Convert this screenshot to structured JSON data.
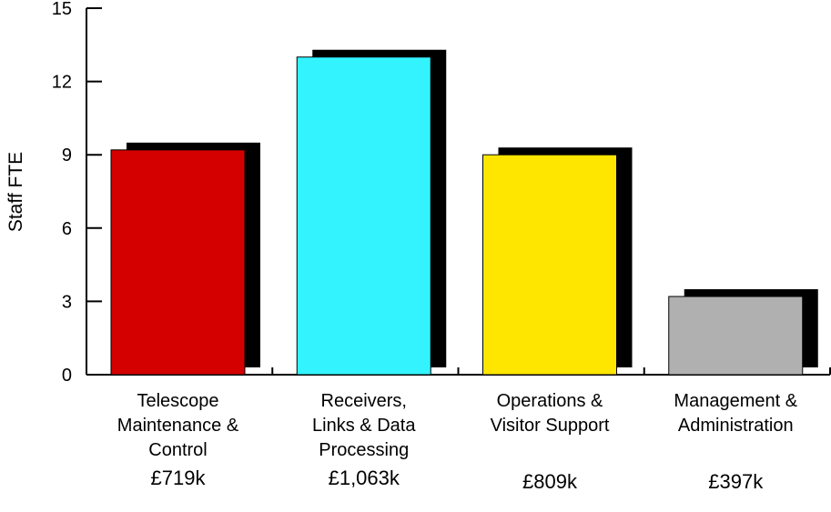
{
  "chart_data": {
    "type": "bar",
    "ylabel": "Staff FTE",
    "ylim": [
      0,
      15
    ],
    "yticks": [
      0,
      3,
      6,
      9,
      12,
      15
    ],
    "grid": false,
    "shadow": true,
    "categories": [
      "Telescope Maintenance & Control",
      "Receivers, Links & Data Processing",
      "Operations & Visitor Support",
      "Management & Administration"
    ],
    "category_label_lines": [
      [
        "Telescope",
        "Maintenance &",
        "Control"
      ],
      [
        "Receivers,",
        "Links & Data",
        "Processing"
      ],
      [
        "Operations &",
        "Visitor Support"
      ],
      [
        "Management &",
        "Administration"
      ]
    ],
    "values": [
      9.2,
      13.0,
      9.0,
      3.2
    ],
    "costs": [
      "£719k",
      "£1,063k",
      "£809k",
      "£397k"
    ],
    "colors": [
      "#d40000",
      "#33f3ff",
      "#ffe600",
      "#b0b0b0"
    ],
    "shadow_color": "#000000"
  }
}
